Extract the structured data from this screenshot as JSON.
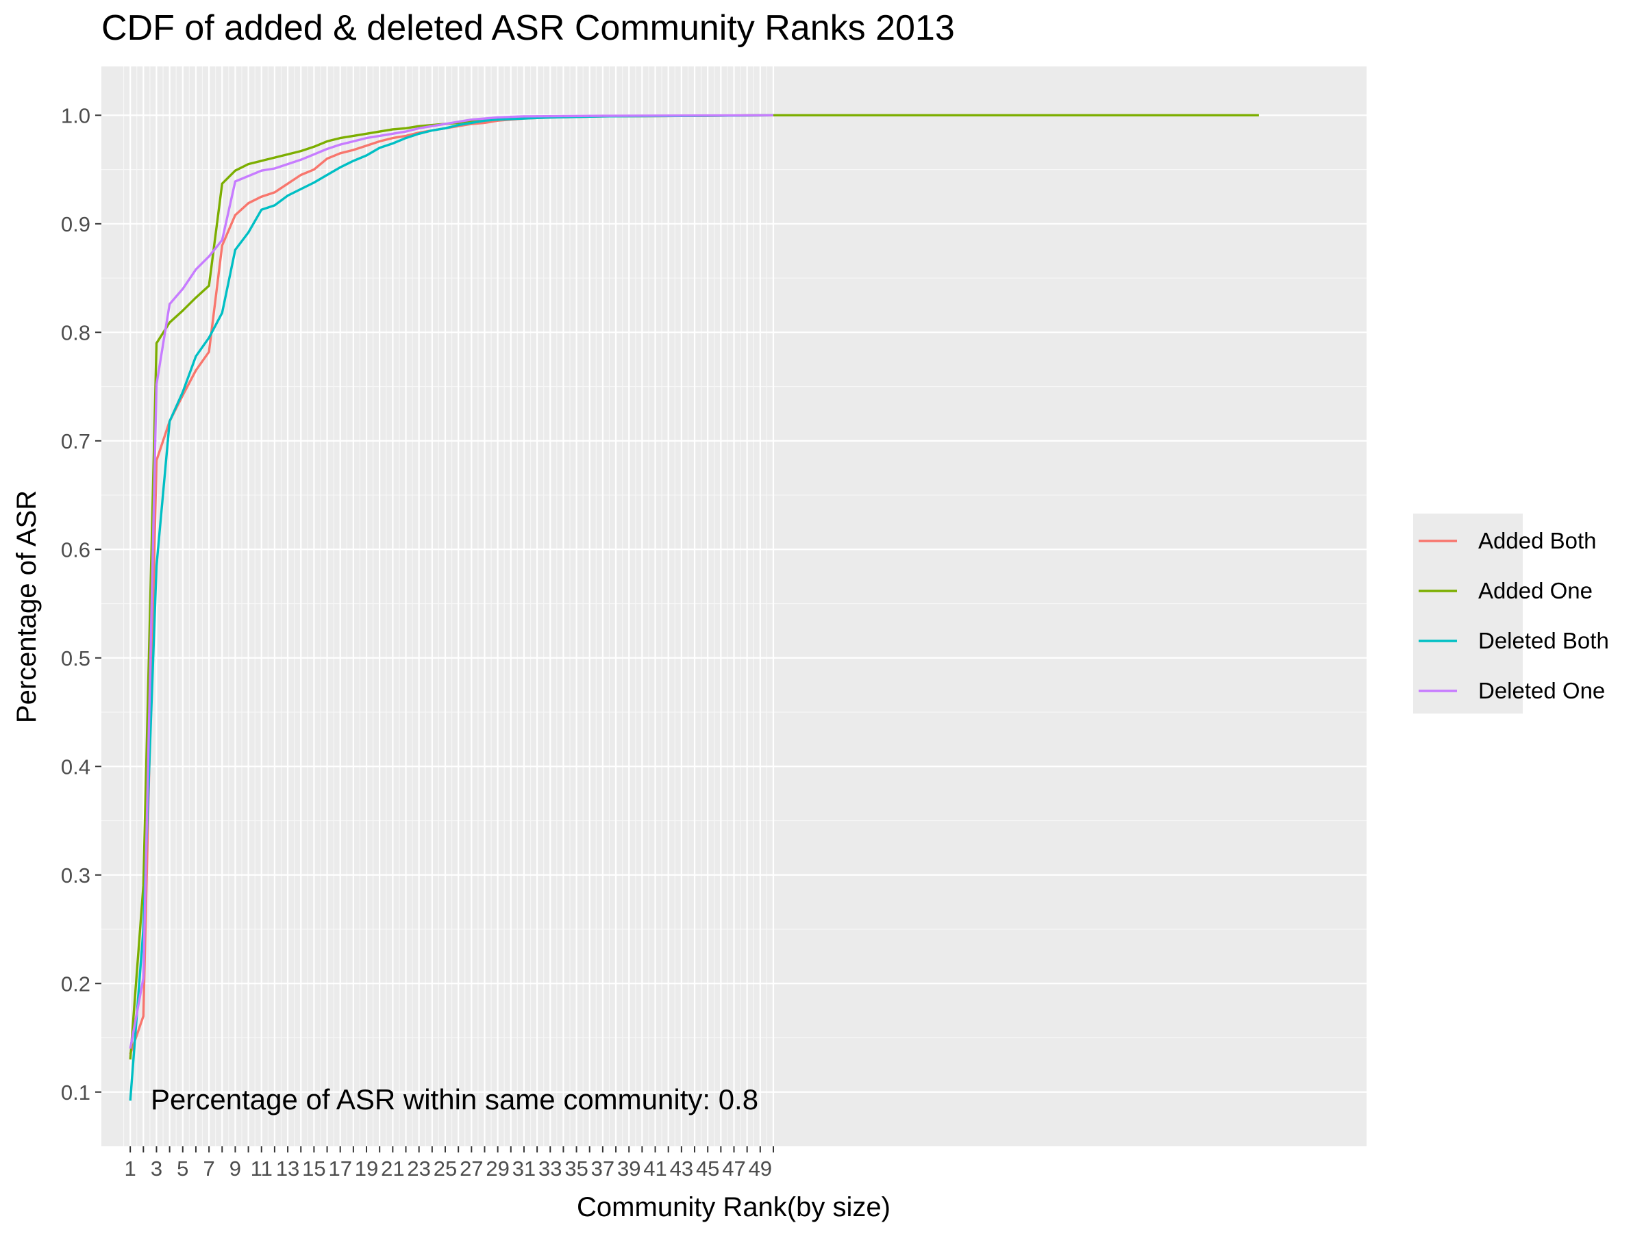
{
  "chart_data": {
    "type": "line",
    "title": "CDF of added & deleted ASR Community Ranks 2013",
    "xlabel": "Community Rank(by size)",
    "ylabel": "Percentage of ASR",
    "annotation": "Percentage of ASR within same community: 0.8",
    "xlim": [
      -1.2,
      95.2
    ],
    "ylim": [
      0.05,
      1.045
    ],
    "grid": true,
    "legend_position": "right",
    "x_ticks": [
      1,
      3,
      5,
      7,
      9,
      11,
      13,
      15,
      17,
      19,
      21,
      23,
      25,
      27,
      29,
      31,
      33,
      35,
      37,
      39,
      41,
      43,
      45,
      47,
      49
    ],
    "x_tick_labels": [
      "1",
      "3",
      "5",
      "7",
      "9",
      "11",
      "13",
      "15",
      "17",
      "19",
      "21",
      "23",
      "25",
      "27",
      "29",
      "31",
      "33",
      "35",
      "37",
      "39",
      "41",
      "43",
      "45",
      "47",
      "49"
    ],
    "y_ticks": [
      0.1,
      0.2,
      0.3,
      0.4,
      0.5,
      0.6,
      0.7,
      0.8,
      0.9,
      1.0
    ],
    "y_tick_labels": [
      "0.1",
      "0.2",
      "0.3",
      "0.4",
      "0.5",
      "0.6",
      "0.7",
      "0.8",
      "0.9",
      "1.0"
    ],
    "series": [
      {
        "name": "Added Both",
        "color": "#F8766D",
        "points": [
          [
            1,
            0.135
          ],
          [
            2,
            0.17
          ],
          [
            3,
            0.682
          ],
          [
            4,
            0.718
          ],
          [
            5,
            0.742
          ],
          [
            6,
            0.765
          ],
          [
            7,
            0.782
          ],
          [
            8,
            0.88
          ],
          [
            9,
            0.908
          ],
          [
            10,
            0.919
          ],
          [
            11,
            0.925
          ],
          [
            12,
            0.929
          ],
          [
            13,
            0.937
          ],
          [
            14,
            0.945
          ],
          [
            15,
            0.95
          ],
          [
            16,
            0.96
          ],
          [
            17,
            0.965
          ],
          [
            18,
            0.968
          ],
          [
            19,
            0.972
          ],
          [
            20,
            0.976
          ],
          [
            21,
            0.979
          ],
          [
            22,
            0.981
          ],
          [
            23,
            0.984
          ],
          [
            24,
            0.986
          ],
          [
            25,
            0.988
          ],
          [
            26,
            0.99
          ],
          [
            27,
            0.992
          ],
          [
            28,
            0.993
          ],
          [
            29,
            0.995
          ],
          [
            30,
            0.996
          ],
          [
            31,
            0.997
          ],
          [
            33,
            0.998
          ],
          [
            37,
            0.999
          ],
          [
            45,
            0.9995
          ],
          [
            49,
            1.0
          ],
          [
            50,
            1.0
          ]
        ]
      },
      {
        "name": "Added One",
        "color": "#7CAE00",
        "points": [
          [
            1,
            0.13
          ],
          [
            2,
            0.29
          ],
          [
            3,
            0.79
          ],
          [
            4,
            0.809
          ],
          [
            5,
            0.82
          ],
          [
            6,
            0.832
          ],
          [
            7,
            0.843
          ],
          [
            8,
            0.937
          ],
          [
            9,
            0.949
          ],
          [
            10,
            0.955
          ],
          [
            11,
            0.958
          ],
          [
            12,
            0.961
          ],
          [
            13,
            0.964
          ],
          [
            14,
            0.967
          ],
          [
            15,
            0.971
          ],
          [
            16,
            0.976
          ],
          [
            17,
            0.979
          ],
          [
            18,
            0.981
          ],
          [
            19,
            0.983
          ],
          [
            20,
            0.985
          ],
          [
            21,
            0.987
          ],
          [
            22,
            0.988
          ],
          [
            23,
            0.99
          ],
          [
            24,
            0.991
          ],
          [
            25,
            0.992
          ],
          [
            26,
            0.993
          ],
          [
            27,
            0.995
          ],
          [
            28,
            0.996
          ],
          [
            29,
            0.997
          ],
          [
            31,
            0.998
          ],
          [
            35,
            0.999
          ],
          [
            45,
            0.9995
          ],
          [
            50,
            1.0
          ],
          [
            87,
            1.0
          ]
        ]
      },
      {
        "name": "Deleted Both",
        "color": "#00BFC4",
        "points": [
          [
            1,
            0.092
          ],
          [
            2,
            0.25
          ],
          [
            3,
            0.585
          ],
          [
            4,
            0.718
          ],
          [
            5,
            0.745
          ],
          [
            6,
            0.778
          ],
          [
            7,
            0.795
          ],
          [
            8,
            0.818
          ],
          [
            9,
            0.876
          ],
          [
            10,
            0.892
          ],
          [
            11,
            0.913
          ],
          [
            12,
            0.917
          ],
          [
            13,
            0.926
          ],
          [
            14,
            0.932
          ],
          [
            15,
            0.938
          ],
          [
            16,
            0.945
          ],
          [
            17,
            0.952
          ],
          [
            18,
            0.958
          ],
          [
            19,
            0.963
          ],
          [
            20,
            0.97
          ],
          [
            21,
            0.974
          ],
          [
            22,
            0.979
          ],
          [
            23,
            0.983
          ],
          [
            24,
            0.986
          ],
          [
            25,
            0.988
          ],
          [
            26,
            0.991
          ],
          [
            27,
            0.993
          ],
          [
            28,
            0.995
          ],
          [
            29,
            0.996
          ],
          [
            31,
            0.997
          ],
          [
            33,
            0.998
          ],
          [
            37,
            0.999
          ],
          [
            45,
            0.9995
          ],
          [
            50,
            1.0
          ]
        ]
      },
      {
        "name": "Deleted One",
        "color": "#C77CFF",
        "points": [
          [
            1,
            0.14
          ],
          [
            2,
            0.205
          ],
          [
            3,
            0.752
          ],
          [
            4,
            0.826
          ],
          [
            5,
            0.84
          ],
          [
            6,
            0.858
          ],
          [
            7,
            0.87
          ],
          [
            8,
            0.885
          ],
          [
            9,
            0.939
          ],
          [
            10,
            0.944
          ],
          [
            11,
            0.949
          ],
          [
            12,
            0.951
          ],
          [
            13,
            0.955
          ],
          [
            14,
            0.959
          ],
          [
            15,
            0.964
          ],
          [
            16,
            0.969
          ],
          [
            17,
            0.973
          ],
          [
            18,
            0.976
          ],
          [
            19,
            0.979
          ],
          [
            20,
            0.981
          ],
          [
            21,
            0.983
          ],
          [
            22,
            0.985
          ],
          [
            23,
            0.988
          ],
          [
            24,
            0.99
          ],
          [
            25,
            0.992
          ],
          [
            26,
            0.994
          ],
          [
            27,
            0.996
          ],
          [
            28,
            0.997
          ],
          [
            29,
            0.998
          ],
          [
            31,
            0.999
          ],
          [
            37,
            0.9995
          ],
          [
            50,
            1.0
          ]
        ]
      }
    ]
  }
}
